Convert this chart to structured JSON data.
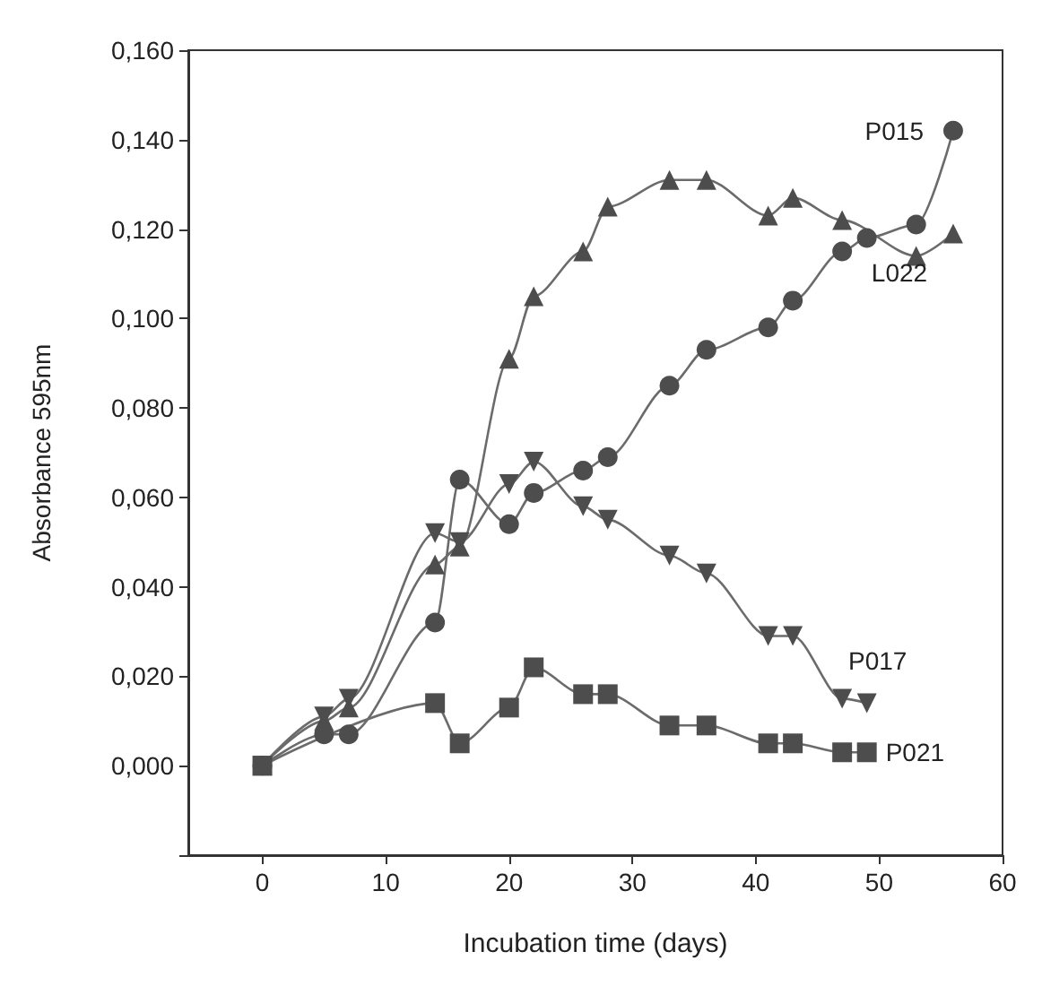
{
  "chart_data": {
    "type": "line",
    "xlabel": "Incubation time (days)",
    "ylabel": "Absorbance 595nm",
    "xlim": [
      -6,
      60
    ],
    "xticks": [
      0,
      10,
      20,
      30,
      40,
      50,
      60
    ],
    "ylim": [
      -0.02,
      0.16
    ],
    "yticks": [
      {
        "value": -0.02,
        "label": null
      },
      {
        "value": 0,
        "label": "0,000"
      },
      {
        "value": 0.02,
        "label": "0,020"
      },
      {
        "value": 0.04,
        "label": "0,040"
      },
      {
        "value": 0.06,
        "label": "0,060"
      },
      {
        "value": 0.08,
        "label": "0,080"
      },
      {
        "value": 0.1,
        "label": "0,100"
      },
      {
        "value": 0.12,
        "label": "0,120"
      },
      {
        "value": 0.14,
        "label": "0,140"
      },
      {
        "value": 0.16,
        "label": "0,160"
      }
    ],
    "grid": false,
    "legend": false,
    "line_style": "solid",
    "series": [
      {
        "name": "P015",
        "color": "#4d4d4d",
        "marker": "circle",
        "x": [
          0,
          5,
          7,
          14,
          16,
          20,
          22,
          26,
          28,
          33,
          36,
          41,
          43,
          47,
          49,
          53,
          56
        ],
        "values": [
          0,
          0.007,
          0.007,
          0.032,
          0.064,
          0.054,
          0.061,
          0.066,
          0.069,
          0.085,
          0.093,
          0.098,
          0.104,
          0.115,
          0.118,
          0.121,
          0.142
        ]
      },
      {
        "name": "L022",
        "color": "#4d4d4d",
        "marker": "triangle",
        "x": [
          0,
          5,
          7,
          14,
          16,
          20,
          22,
          26,
          28,
          33,
          36,
          41,
          43,
          47,
          53,
          56
        ],
        "values": [
          0,
          0.01,
          0.013,
          0.045,
          0.049,
          0.091,
          0.105,
          0.115,
          0.125,
          0.131,
          0.131,
          0.123,
          0.127,
          0.122,
          0.114,
          0.119
        ]
      },
      {
        "name": "P017",
        "color": "#4d4d4d",
        "marker": "triangle",
        "x": [
          0,
          5,
          7,
          14,
          16,
          20,
          22,
          26,
          28,
          33,
          36,
          41,
          43,
          47,
          49
        ],
        "values": [
          0,
          0.011,
          0.015,
          0.052,
          0.05,
          0.063,
          0.068,
          0.058,
          0.055,
          0.047,
          0.043,
          0.029,
          0.029,
          0.015,
          0.014
        ]
      },
      {
        "name": "P021",
        "color": "#4d4d4d",
        "marker": "square",
        "x": [
          0,
          14,
          16,
          20,
          22,
          26,
          28,
          33,
          36,
          41,
          43,
          47,
          49
        ],
        "values": [
          0,
          0.014,
          0.005,
          0.013,
          0.022,
          0.016,
          0.016,
          0.009,
          0.009,
          0.005,
          0.005,
          0.003,
          0.003
        ]
      }
    ]
  }
}
